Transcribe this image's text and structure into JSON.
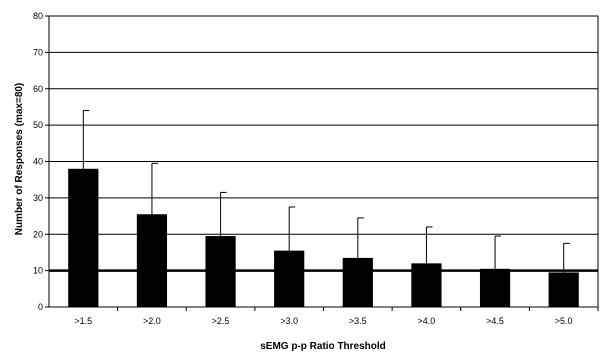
{
  "chart_data": {
    "type": "bar",
    "title": "",
    "xlabel": "sEMG p-p Ratio Threshold",
    "ylabel": "Number of Responses (max=80)",
    "categories": [
      ">1.5",
      ">2.0",
      ">2.5",
      ">3.0",
      ">3.5",
      ">4.0",
      ">4.5",
      ">5.0"
    ],
    "values": [
      38,
      25.5,
      19.5,
      15.5,
      13.5,
      12,
      10.5,
      9.5
    ],
    "error_upper": [
      54,
      39.5,
      31.5,
      27.5,
      24.5,
      22,
      19.5,
      17.5
    ],
    "ylim": [
      0,
      80
    ],
    "yticks": [
      0,
      10,
      20,
      30,
      40,
      50,
      60,
      70,
      80
    ],
    "grid": true,
    "reference_line": 10,
    "colors": {
      "bar": "#000000",
      "grid": "#000000",
      "background": "#ffffff"
    }
  }
}
